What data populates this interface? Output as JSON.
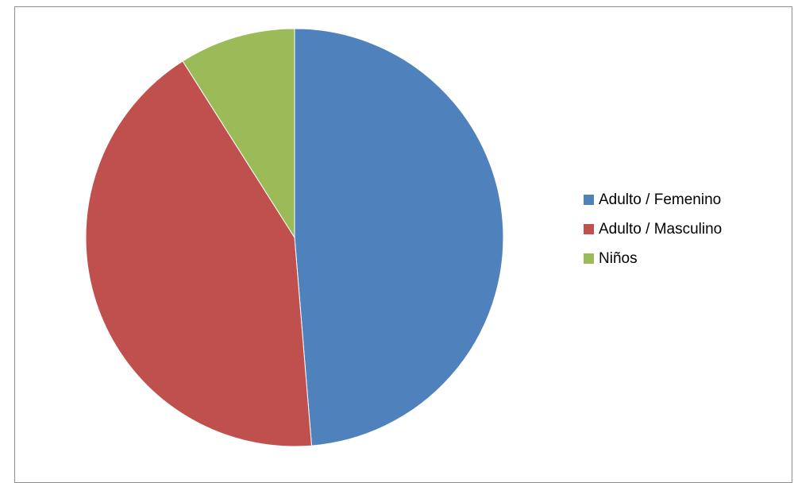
{
  "chart_data": {
    "type": "pie",
    "title": "",
    "categories": [
      "Adulto / Femenino",
      "Adulto / Masculino",
      "Niños"
    ],
    "values": [
      48.7,
      42.3,
      9.0
    ],
    "colors": [
      "#4F81BD",
      "#C0504D",
      "#9BBB59"
    ],
    "legend_position": "right",
    "data_labels": false
  }
}
